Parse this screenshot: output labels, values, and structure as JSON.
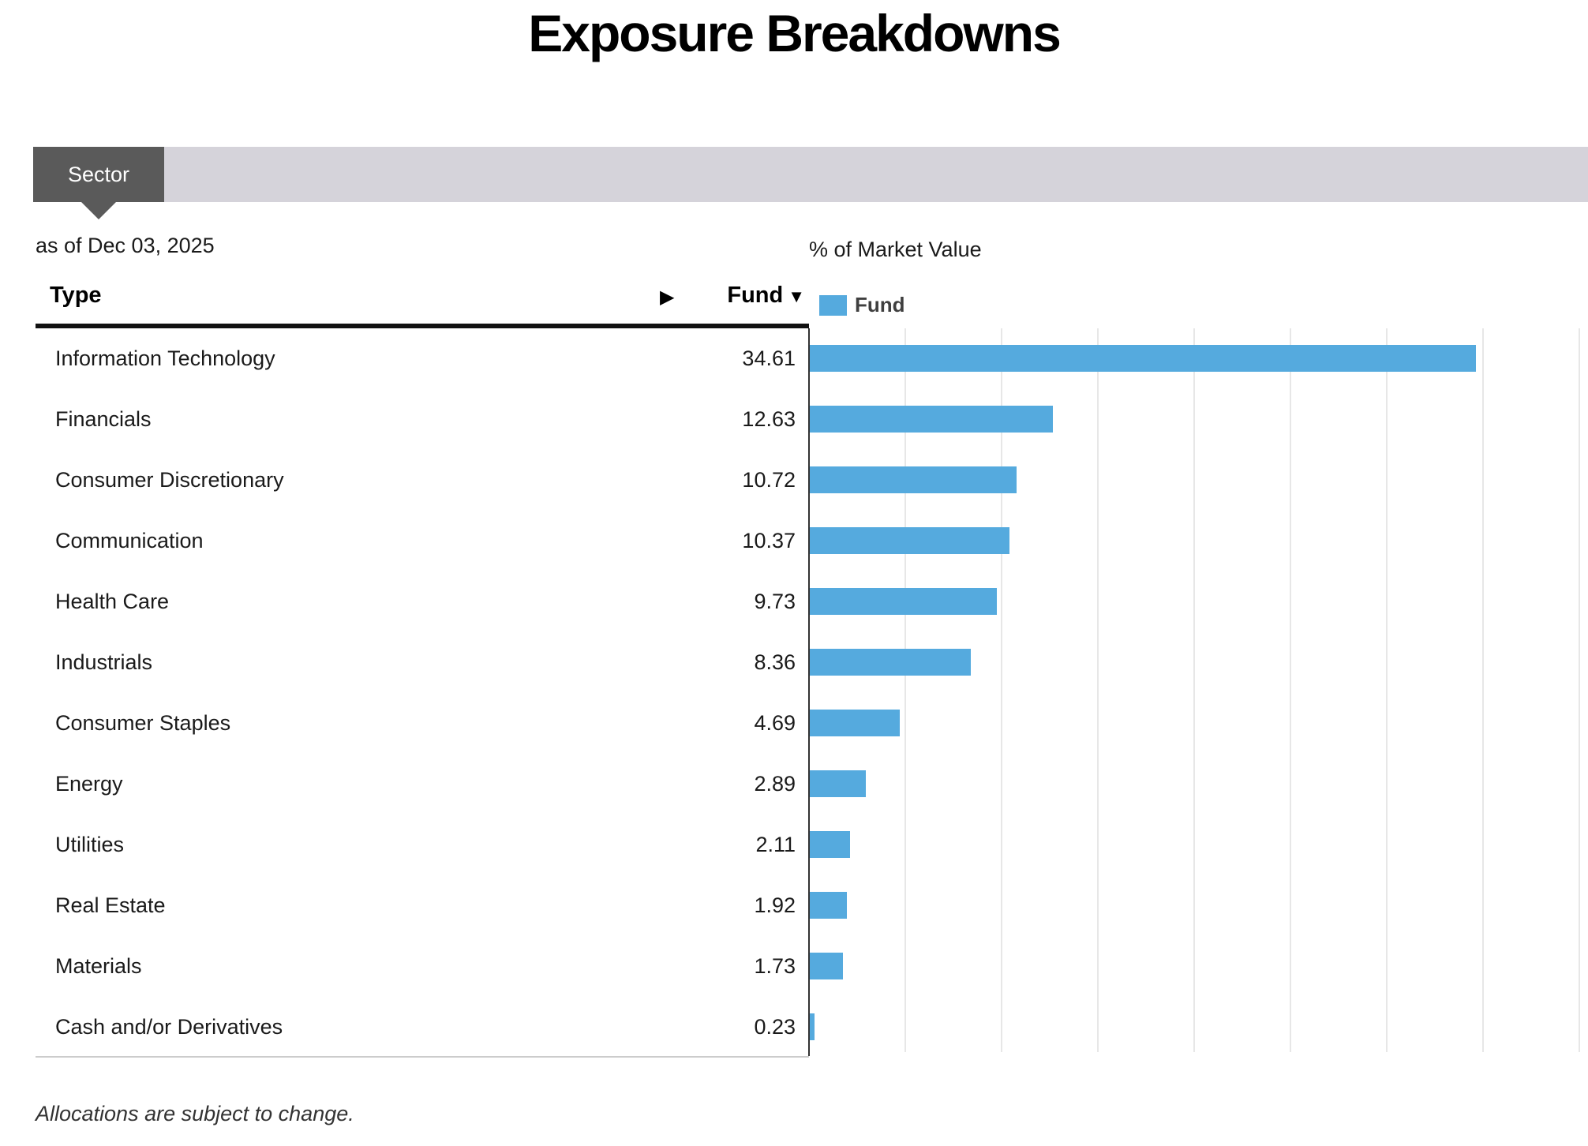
{
  "page": {
    "title": "Exposure Breakdowns",
    "footer_note": "Allocations are subject to change."
  },
  "tabs": {
    "active_label": "Sector"
  },
  "table": {
    "as_of": "as of Dec 03, 2025",
    "type_header": "Type",
    "fund_header": "Fund",
    "sort_icon": "▼",
    "expand_icon": "▶"
  },
  "legend": {
    "label": "Fund",
    "swatch_color": "#55aade"
  },
  "chart_data": {
    "type": "bar",
    "orientation": "horizontal",
    "title": "Exposure Breakdowns",
    "xlabel": "% of Market Value",
    "series_name": "Fund",
    "categories": [
      "Information Technology",
      "Financials",
      "Consumer Discretionary",
      "Communication",
      "Health Care",
      "Industrials",
      "Consumer Staples",
      "Energy",
      "Utilities",
      "Real Estate",
      "Materials",
      "Cash and/or Derivatives"
    ],
    "values": [
      34.61,
      12.63,
      10.72,
      10.37,
      9.73,
      8.36,
      4.69,
      2.89,
      2.11,
      1.92,
      1.73,
      0.23
    ],
    "xlim": [
      0,
      40
    ],
    "gridline_step": 5,
    "grid": "vertical-only",
    "bar_color": "#55aade",
    "legend_position": "top-left-of-plot"
  }
}
